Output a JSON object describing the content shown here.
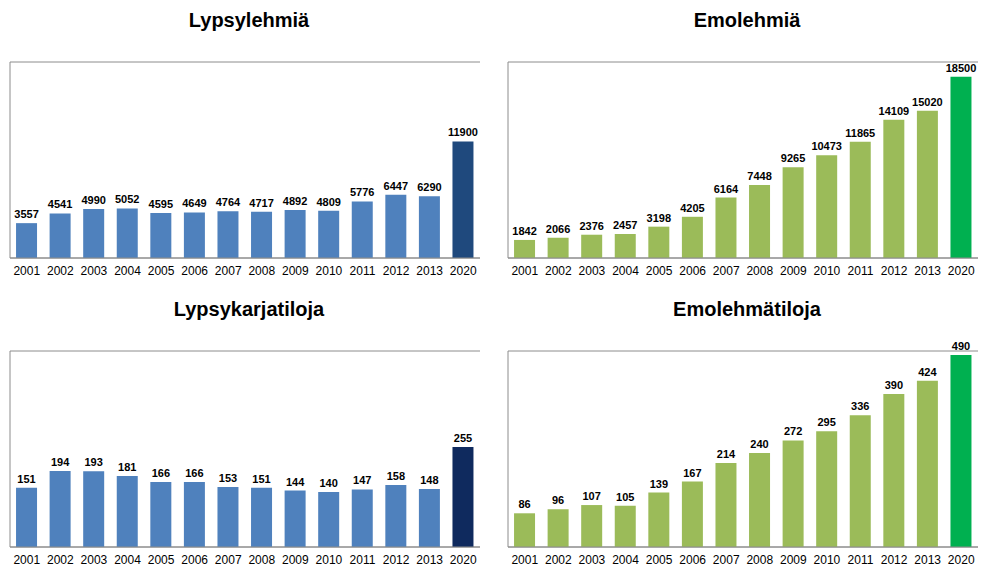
{
  "chart_data": [
    {
      "type": "bar",
      "title": "Lypsylehmiä",
      "categories": [
        "2001",
        "2002",
        "2003",
        "2004",
        "2005",
        "2006",
        "2007",
        "2008",
        "2009",
        "2010",
        "2011",
        "2012",
        "2013",
        "2020"
      ],
      "values": [
        3557,
        4541,
        4990,
        5052,
        4595,
        4649,
        4764,
        4717,
        4892,
        4809,
        5776,
        6447,
        6290,
        11900
      ],
      "colors": [
        "#4f81bd",
        "#4f81bd",
        "#4f81bd",
        "#4f81bd",
        "#4f81bd",
        "#4f81bd",
        "#4f81bd",
        "#4f81bd",
        "#4f81bd",
        "#4f81bd",
        "#4f81bd",
        "#4f81bd",
        "#4f81bd",
        "#1f497d"
      ],
      "ylim": [
        0,
        20000
      ],
      "yticks": [
        0,
        5000,
        10000,
        15000,
        20000
      ],
      "grid": true,
      "data_labels": true,
      "tick_labels": "x"
    },
    {
      "type": "bar",
      "title": "Emolehmiä",
      "categories": [
        "2001",
        "2002",
        "2003",
        "2004",
        "2005",
        "2006",
        "2007",
        "2008",
        "2009",
        "2010",
        "2011",
        "2012",
        "2013",
        "2020"
      ],
      "values": [
        1842,
        2066,
        2376,
        2457,
        3198,
        4205,
        6164,
        7448,
        9265,
        10473,
        11865,
        14109,
        15020,
        18500
      ],
      "colors": [
        "#9bbb59",
        "#9bbb59",
        "#9bbb59",
        "#9bbb59",
        "#9bbb59",
        "#9bbb59",
        "#9bbb59",
        "#9bbb59",
        "#9bbb59",
        "#9bbb59",
        "#9bbb59",
        "#9bbb59",
        "#9bbb59",
        "#00b050"
      ],
      "ylim": [
        0,
        20000
      ],
      "yticks": [
        0,
        5000,
        10000,
        15000,
        20000
      ],
      "grid": true,
      "data_labels": true,
      "tick_labels": "x"
    },
    {
      "type": "bar",
      "title": "Lypsykarjatiloja",
      "categories": [
        "2001",
        "2002",
        "2003",
        "2004",
        "2005",
        "2006",
        "2007",
        "2008",
        "2009",
        "2010",
        "2011",
        "2012",
        "2013",
        "2020"
      ],
      "values": [
        151,
        194,
        193,
        181,
        166,
        166,
        153,
        151,
        144,
        140,
        147,
        158,
        148,
        255
      ],
      "colors": [
        "#4f81bd",
        "#4f81bd",
        "#4f81bd",
        "#4f81bd",
        "#4f81bd",
        "#4f81bd",
        "#4f81bd",
        "#4f81bd",
        "#4f81bd",
        "#4f81bd",
        "#4f81bd",
        "#4f81bd",
        "#4f81bd",
        "#0f2a5e"
      ],
      "ylim": [
        0,
        500
      ],
      "yticks": [
        0,
        100,
        200,
        300,
        400,
        500
      ],
      "grid": true,
      "data_labels": true,
      "tick_labels": "x"
    },
    {
      "type": "bar",
      "title": "Emolehmätiloja",
      "categories": [
        "2001",
        "2002",
        "2003",
        "2004",
        "2005",
        "2006",
        "2007",
        "2008",
        "2009",
        "2010",
        "2011",
        "2012",
        "2013",
        "2020"
      ],
      "values": [
        86,
        96,
        107,
        105,
        139,
        167,
        214,
        240,
        272,
        295,
        336,
        390,
        424,
        490
      ],
      "colors": [
        "#9bbb59",
        "#9bbb59",
        "#9bbb59",
        "#9bbb59",
        "#9bbb59",
        "#9bbb59",
        "#9bbb59",
        "#9bbb59",
        "#9bbb59",
        "#9bbb59",
        "#9bbb59",
        "#9bbb59",
        "#9bbb59",
        "#00b050"
      ],
      "ylim": [
        0,
        500
      ],
      "yticks": [
        0,
        100,
        200,
        300,
        400,
        500
      ],
      "grid": true,
      "data_labels": true,
      "tick_labels": "x"
    }
  ]
}
